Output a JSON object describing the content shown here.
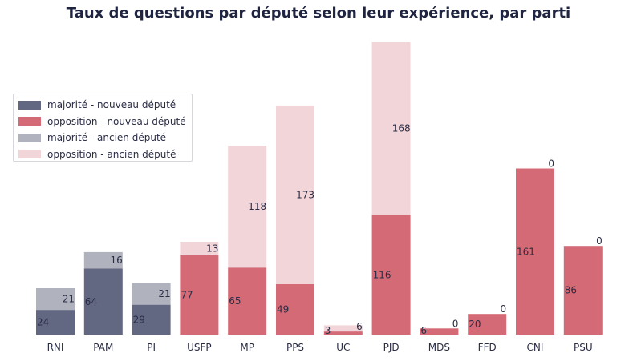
{
  "chart_data": {
    "type": "bar",
    "stacked": true,
    "title": "Taux de questions par député selon leur expérience, par parti",
    "xlabel": "",
    "ylabel": "",
    "ylim": [
      0,
      284
    ],
    "grid": false,
    "legend_position": "left",
    "categories": [
      "RNI",
      "PAM",
      "PI",
      "USFP",
      "MP",
      "PPS",
      "UC",
      "PJD",
      "MDS",
      "FFD",
      "CNI",
      "PSU"
    ],
    "series": [
      {
        "name": "majorité - nouveau député",
        "color": "#636882",
        "values": [
          24,
          64,
          29,
          null,
          null,
          null,
          null,
          null,
          null,
          null,
          null,
          null
        ],
        "labels": [
          "24",
          "64",
          "29",
          "",
          "",
          "",
          "",
          "",
          "",
          "",
          "",
          ""
        ]
      },
      {
        "name": "opposition - nouveau député",
        "color": "#d46a75",
        "values": [
          null,
          null,
          null,
          77,
          65,
          49,
          3,
          116,
          6,
          20,
          161,
          86
        ],
        "labels": [
          "",
          "",
          "",
          "77",
          "65",
          "49",
          "3",
          "116",
          "6",
          "20",
          "161",
          "86"
        ]
      },
      {
        "name": "majorité - ancien député",
        "color": "#b0b2be",
        "values": [
          21,
          16,
          21,
          null,
          null,
          null,
          null,
          null,
          null,
          null,
          null,
          null
        ],
        "labels": [
          "21",
          "16",
          "21",
          "",
          "",
          "",
          "",
          "",
          "",
          "",
          "",
          ""
        ]
      },
      {
        "name": "opposition - ancien député",
        "color": "#f2d5d8",
        "values": [
          null,
          null,
          null,
          13,
          118,
          173,
          6,
          168,
          0,
          0,
          0,
          0
        ],
        "labels": [
          "",
          "",
          "",
          "13",
          "118",
          "173",
          "6",
          "168",
          "0",
          "0",
          "0",
          "0"
        ]
      }
    ]
  }
}
